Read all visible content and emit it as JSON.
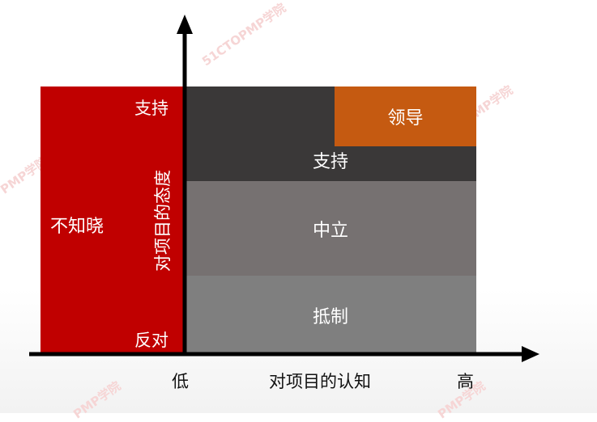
{
  "diagram": {
    "y_axis": {
      "title": "对项目的态度",
      "high_label": "支持",
      "low_label": "反对"
    },
    "x_axis": {
      "title": "对项目的认知",
      "low_label": "低",
      "high_label": "高"
    },
    "regions": {
      "unaware": "不知晓",
      "leading": "领导",
      "supportive": "支持",
      "neutral": "中立",
      "resistant": "抵制"
    },
    "colors": {
      "unaware": "#c00000",
      "leading": "#c55a11",
      "supportive": "#3a3838",
      "neutral": "#767171",
      "resistant": "#7f7f7f",
      "axis": "#000000"
    }
  },
  "watermark": {
    "text": "51CTOPMP学院",
    "short_text": "PMP学院"
  }
}
